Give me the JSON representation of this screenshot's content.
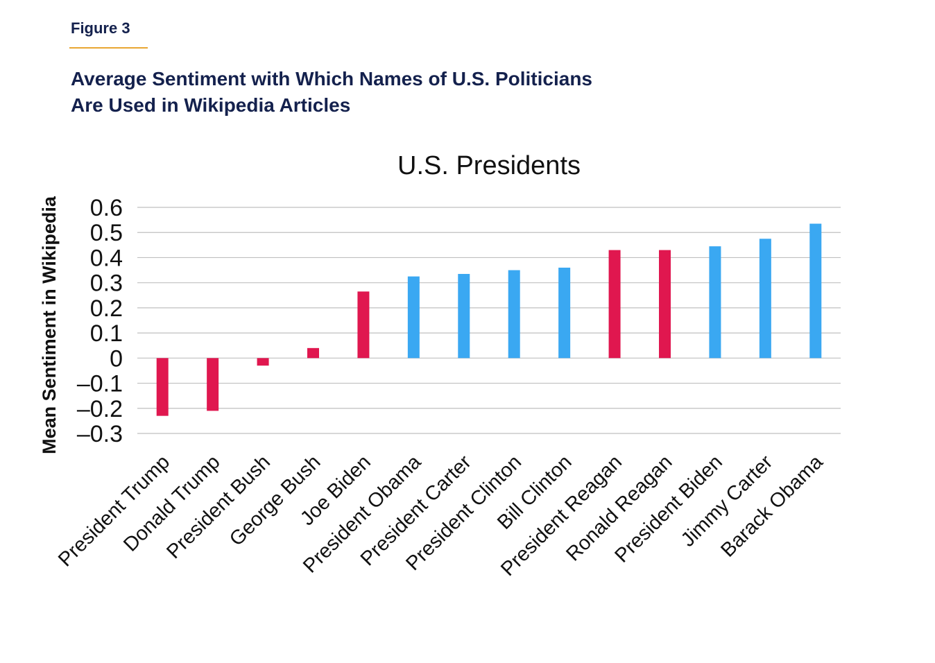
{
  "figure": {
    "label": "Figure 3",
    "title": "Average Sentiment with Which Names of U.S. Politicians Are Used in Wikipedia Articles"
  },
  "chart_data": {
    "type": "bar",
    "title": "U.S. Presidents",
    "xlabel": "",
    "ylabel": "Mean Sentiment in Wikipedia",
    "ylim": [
      -0.3,
      0.6
    ],
    "yticks": [
      0.6,
      0.5,
      0.4,
      0.3,
      0.2,
      0.1,
      0,
      -0.1,
      -0.2,
      -0.3
    ],
    "ytick_labels": [
      "0.6",
      "0.5",
      "0.4",
      "0.3",
      "0.2",
      "0.1",
      "0",
      "–0.1",
      "–0.2",
      "–0.3"
    ],
    "grid": true,
    "categories": [
      "President Trump",
      "Donald Trump",
      "President Bush",
      "George Bush",
      "Joe Biden",
      "President Obama",
      "President Carter",
      "President Clinton",
      "Bill Clinton",
      "President Reagan",
      "Ronald Reagan",
      "President Biden",
      "Jimmy Carter",
      "Barack Obama"
    ],
    "values": [
      -0.23,
      -0.21,
      -0.03,
      0.04,
      0.265,
      0.325,
      0.335,
      0.35,
      0.36,
      0.43,
      0.43,
      0.445,
      0.475,
      0.535
    ],
    "colors": [
      "#e0174f",
      "#e0174f",
      "#e0174f",
      "#e0174f",
      "#e0174f",
      "#3aa8f2",
      "#3aa8f2",
      "#3aa8f2",
      "#3aa8f2",
      "#e0174f",
      "#e0174f",
      "#3aa8f2",
      "#3aa8f2",
      "#3aa8f2"
    ]
  }
}
